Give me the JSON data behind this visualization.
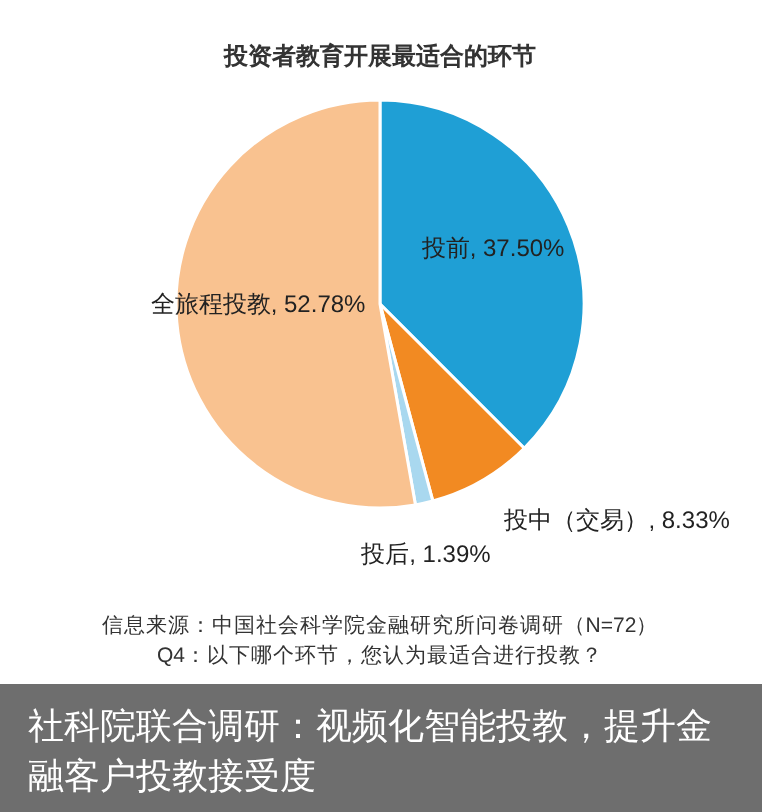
{
  "chart_data": {
    "type": "pie",
    "title": "投资者教育开展最适合的环节",
    "categories": [
      "投前",
      "投中（交易）",
      "投后",
      "全旅程投教"
    ],
    "values": [
      37.5,
      8.33,
      1.39,
      52.78
    ],
    "value_labels": [
      "37.50%",
      "8.33%",
      "1.39%",
      "52.78%"
    ],
    "colors": [
      "#1f9fd5",
      "#f28a22",
      "#a9d8ef",
      "#f9c290"
    ],
    "legend": false,
    "annotations": [
      "信息来源：中国社会科学院金融研究所问卷调研（N=72）",
      "Q4：以下哪个环节，您认为最适合进行投教？",
      "社科院联合调研：视频化智能投教，提升金融客户投教接受度"
    ]
  }
}
